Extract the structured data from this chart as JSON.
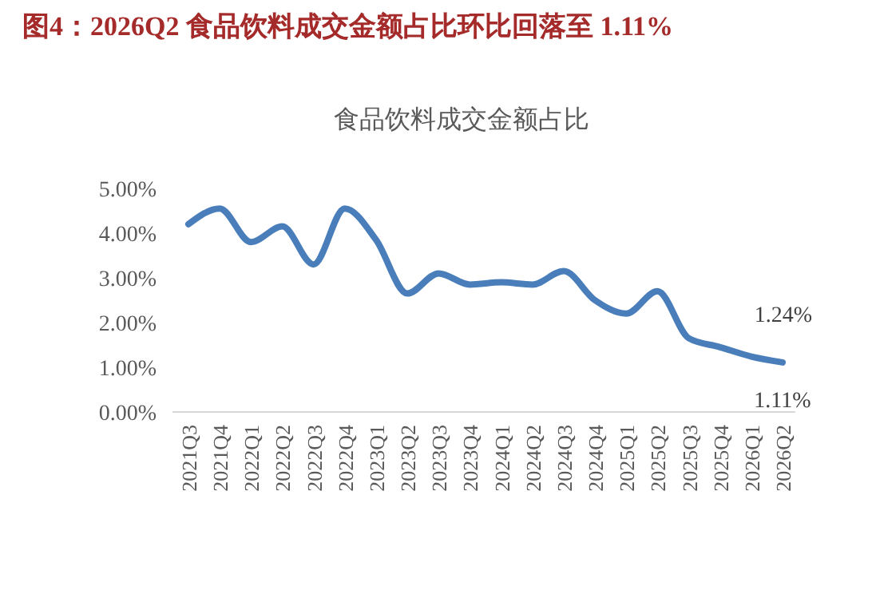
{
  "chart_data": {
    "type": "line",
    "title": "图4：2026Q2 食品饮料成交金额占比环比回落至 1.11%",
    "subtitle": "食品饮料成交金额占比",
    "categories": [
      "2021Q3",
      "2021Q4",
      "2022Q1",
      "2022Q2",
      "2022Q3",
      "2022Q4",
      "2023Q1",
      "2023Q2",
      "2023Q3",
      "2023Q4",
      "2024Q1",
      "2024Q2",
      "2024Q3",
      "2024Q4",
      "2025Q1",
      "2025Q2",
      "2025Q3",
      "2025Q4",
      "2026Q1",
      "2026Q2"
    ],
    "series": [
      {
        "color": "#4a7ebb",
        "values": [
          4.2,
          4.55,
          3.8,
          4.15,
          3.3,
          4.55,
          3.85,
          2.65,
          3.1,
          2.85,
          2.9,
          2.85,
          3.15,
          2.5,
          2.2,
          2.7,
          1.65,
          1.45,
          1.24,
          1.11
        ],
        "value_labels": [
          null,
          null,
          null,
          null,
          null,
          null,
          null,
          null,
          null,
          null,
          null,
          null,
          null,
          null,
          null,
          null,
          null,
          null,
          "1.24%",
          "1.11%"
        ]
      }
    ],
    "ylim": [
      0,
      5
    ],
    "yticks": [
      {
        "value": 0,
        "label": "0.00%"
      },
      {
        "value": 1,
        "label": "1.00%"
      },
      {
        "value": 2,
        "label": "2.00%"
      },
      {
        "value": 3,
        "label": "3.00%"
      },
      {
        "value": 4,
        "label": "4.00%"
      },
      {
        "value": 5,
        "label": "5.00%"
      }
    ],
    "grid": false,
    "marker": "none",
    "line_style": "solid"
  }
}
